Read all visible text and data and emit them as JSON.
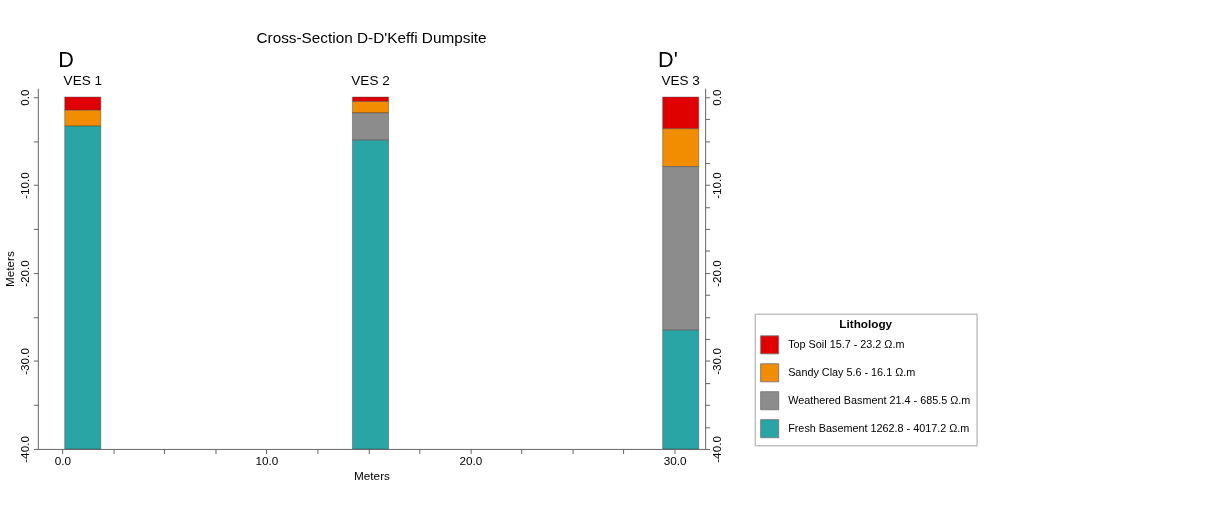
{
  "chart_data": {
    "type": "bar",
    "title": "Cross-Section D-D'Keffi Dumpsite",
    "xlabel": "Meters",
    "ylabel": "Meters",
    "legend_title": "Lithology",
    "x": [
      1.0,
      15.1,
      30.3
    ],
    "stacked": true,
    "series": [
      {
        "name": "Top Soil 15.7 - 23.2 Ω.m",
        "color": "#e00000",
        "values": [
          -1.5,
          -0.5,
          -3.6
        ]
      },
      {
        "name": "Sandy Clay 5.6 - 16.1 Ω.m",
        "color": "#f28c00",
        "values": [
          -1.8,
          -1.3,
          -4.3
        ]
      },
      {
        "name": "Weathered Basment 21.4 - 685.5 Ω.m",
        "color": "#8c8c8c",
        "values": [
          null,
          -3.1,
          -18.6
        ]
      },
      {
        "name": "Fresh Basement 1262.8 - 4017.2 Ω.m",
        "color": "#2aa5a5",
        "values": [
          -36.7,
          -35.1,
          -13.5
        ]
      }
    ],
    "annotations": [
      {
        "text": "VES 1",
        "x": 1.0,
        "y": 0
      },
      {
        "text": "VES 2",
        "x": 15.1,
        "y": 0
      },
      {
        "text": "VES 3",
        "x": 30.3,
        "y": 0
      },
      {
        "text": "D",
        "x": 0,
        "y": 0
      },
      {
        "text": "D'",
        "x": 29.5,
        "y": 0
      }
    ],
    "xlim": [
      -1.2,
      31.5
    ],
    "xticks": [
      {
        "value": 0,
        "label": "0.0"
      },
      {
        "value": 2.5,
        "label": null
      },
      {
        "value": 5,
        "label": null
      },
      {
        "value": 7.5,
        "label": null
      },
      {
        "value": 10,
        "label": "10.0"
      },
      {
        "value": 12.5,
        "label": null
      },
      {
        "value": 15,
        "label": null
      },
      {
        "value": 17.5,
        "label": null
      },
      {
        "value": 20,
        "label": "20.0"
      },
      {
        "value": 22.5,
        "label": null
      },
      {
        "value": 25,
        "label": null
      },
      {
        "value": 27.5,
        "label": null
      },
      {
        "value": 30,
        "label": "30.0"
      }
    ],
    "ylim": [
      -40,
      1
    ],
    "yticks": [
      {
        "value": 0,
        "label": "0.0"
      },
      {
        "value": -2.5,
        "label": null
      },
      {
        "value": -5,
        "label": null
      },
      {
        "value": -7.5,
        "label": null
      },
      {
        "value": -10,
        "label": "-10.0"
      },
      {
        "value": -12.5,
        "label": null
      },
      {
        "value": -15,
        "label": null
      },
      {
        "value": -17.5,
        "label": null
      },
      {
        "value": -20,
        "label": "-20.0"
      },
      {
        "value": -22.5,
        "label": null
      },
      {
        "value": -25,
        "label": null
      },
      {
        "value": -27.5,
        "label": null
      },
      {
        "value": -30,
        "label": "-30.0"
      },
      {
        "value": -32.5,
        "label": null
      },
      {
        "value": -35,
        "label": null
      },
      {
        "value": -37.5,
        "label": null
      },
      {
        "value": -40,
        "label": "-40.0"
      }
    ],
    "y2lim": [
      -40,
      1
    ],
    "y2ticks": [
      {
        "value": 0,
        "label": "0.0"
      },
      {
        "value": -2.5,
        "label": null
      },
      {
        "value": -5,
        "label": null
      },
      {
        "value": -7.5,
        "label": null
      },
      {
        "value": -10,
        "label": "-10.0"
      },
      {
        "value": -12.5,
        "label": null
      },
      {
        "value": -15,
        "label": null
      },
      {
        "value": -17.5,
        "label": null
      },
      {
        "value": -20,
        "label": "-20.0"
      },
      {
        "value": -22.5,
        "label": null
      },
      {
        "value": -25,
        "label": null
      },
      {
        "value": -27.5,
        "label": null
      },
      {
        "value": -30,
        "label": "-30.0"
      },
      {
        "value": -32.5,
        "label": null
      },
      {
        "value": -35,
        "label": null
      },
      {
        "value": -37.5,
        "label": null
      },
      {
        "value": -40,
        "label": "-40.0"
      }
    ],
    "grid": false,
    "legend": "bottom right"
  }
}
